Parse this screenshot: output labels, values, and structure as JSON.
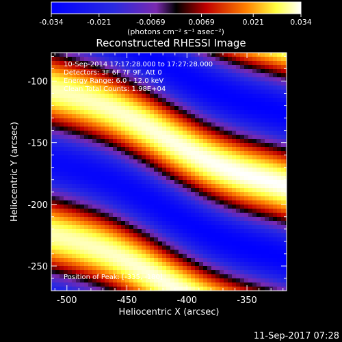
{
  "colorbar": {
    "ticks": [
      "-0.034",
      "-0.021",
      "-0.0069",
      "0.0069",
      "0.021",
      "0.034"
    ],
    "tick_values": [
      -0.034,
      -0.021,
      -0.0069,
      0.0069,
      0.021,
      0.034
    ],
    "min": -0.034,
    "max": 0.034,
    "units": "(photons cm⁻² s⁻¹ asec⁻²)"
  },
  "chart_data": {
    "type": "heatmap",
    "title": "Reconstructed RHESSI Image",
    "xlabel": "Heliocentric X (arcsec)",
    "ylabel": "Heliocentric Y (arcsec)",
    "xlim": [
      -513,
      -317
    ],
    "ylim": [
      -270,
      -77
    ],
    "x_ticks": [
      -500,
      -450,
      -400,
      -350
    ],
    "y_ticks": [
      -100,
      -150,
      -200,
      -250
    ],
    "annotations": [
      "10-Sep-2014 17:17:28.000 to 17:27:28.000",
      "Detectors: 3F 6F 7F 9F, Att 0",
      "Energy Range: 6.0 - 12.0 keV",
      "Clean    Total Counts: 1.98E+04",
      "Position of Peak: [-335, -180]"
    ],
    "peak": [
      -335,
      -180
    ],
    "colormap": "blue-purple-black-red-yellow-white"
  },
  "footer": {
    "timestamp": "11-Sep-2017 07:28"
  }
}
